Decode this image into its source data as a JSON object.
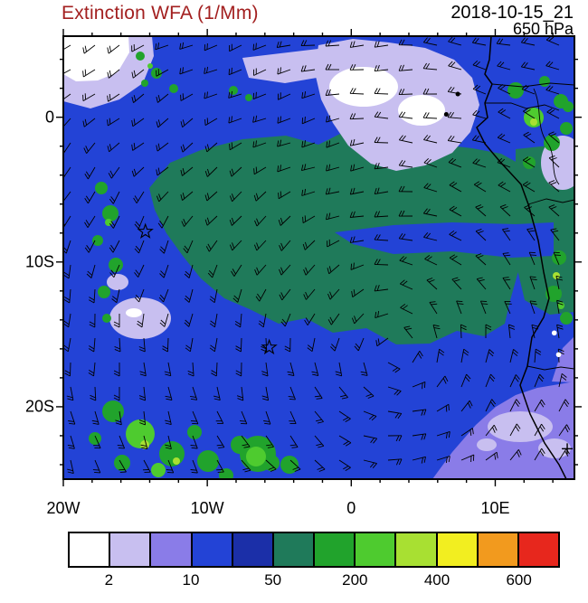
{
  "header": {
    "title": "Extinction WFA (1/Mm)",
    "title_color": "#a32020",
    "datetime": "2018-10-15_21",
    "level": "650 hPa"
  },
  "chart_data": {
    "type": "heatmap",
    "title": "Extinction WFA (1/Mm)",
    "datetime": "2018-10-15_21",
    "level": "650 hPa",
    "units": "1/Mm",
    "extent": {
      "lon_min": -20,
      "lon_max": 15.5,
      "lat_min": -25,
      "lat_max": 5.6
    },
    "axes": {
      "x_major": [
        {
          "label": "20W",
          "lon": -20
        },
        {
          "label": "10W",
          "lon": -10
        },
        {
          "label": "0",
          "lon": 0
        },
        {
          "label": "10E",
          "lon": 10
        }
      ],
      "y_major": [
        {
          "label": "0",
          "lat": 0
        },
        {
          "label": "10S",
          "lat": -10
        },
        {
          "label": "20S",
          "lat": -20
        }
      ],
      "x_minor_step_deg": 2,
      "y_minor_step_deg": 2
    },
    "colorbar": {
      "colors": [
        "#ffffff",
        "#c8bff0",
        "#8a7ce8",
        "#2343d6",
        "#1b2fa8",
        "#1f7a5a",
        "#21a32c",
        "#4ecb2f",
        "#a8e032",
        "#f2ee20",
        "#f29a1e",
        "#e7271d"
      ],
      "labels": [
        "2",
        "10",
        "50",
        "200",
        "400",
        "600"
      ],
      "label_boundary_cells": [
        1,
        3,
        5,
        7,
        9,
        11
      ]
    },
    "markers": [
      {
        "type": "star",
        "lon": -14.3,
        "lat": -7.9
      },
      {
        "type": "star",
        "lon": -5.7,
        "lat": -15.9
      },
      {
        "type": "dot",
        "lon": 6.6,
        "lat": 0.2
      },
      {
        "type": "dot",
        "lon": 7.4,
        "lat": 1.6
      },
      {
        "type": "white-dot",
        "lon": 14.1,
        "lat": -14.9
      },
      {
        "type": "white-dot",
        "lon": 14.4,
        "lat": -16.4
      },
      {
        "type": "plus",
        "lon": 15.0,
        "lat": -22.9
      }
    ],
    "wind_barbs": {
      "present": true,
      "color": "#000000",
      "pattern": "anticyclonic (counterclockwise) gyre centered near 3E, 16S with easterly flow near the equator"
    },
    "field_summary": [
      {
        "range": "50-200",
        "color_index": 5,
        "where": "broad smoke plume over the central South Atlantic from about 3S to 18S, reaching the Gabon/Congo/Angola coast"
      },
      {
        "range": "10-50",
        "color_index": 3,
        "where": "background values over most of the remaining ocean and the gyre interior"
      },
      {
        "range": "2-10",
        "color_index": 1,
        "where": "clean patches in the NW corner, near the equator around 4E-9E, mid ocean near 14W 13S, and the SE corner off Namibia"
      },
      {
        "range": "200-600",
        "color_index": 6,
        "where": "speckled maxima over Gabon and the Congo coast, the SW corner of the map, the western edge near 8S-15S, and near the SE coast"
      }
    ]
  }
}
